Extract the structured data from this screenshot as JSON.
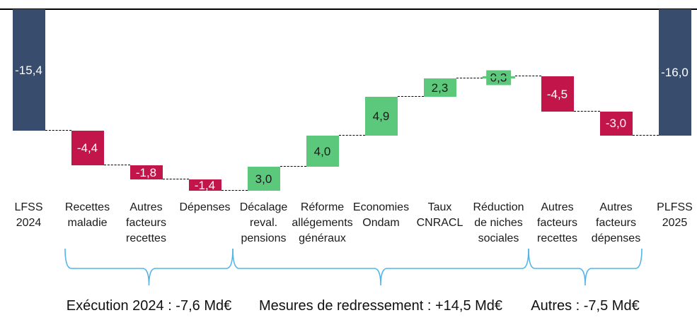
{
  "chart_data": {
    "type": "bar",
    "subtype": "waterfall",
    "title": "",
    "unit": "Md€",
    "axis": {
      "baseline_value": 0,
      "grid": false,
      "legend": false
    },
    "columns": [
      {
        "category": "LFSS\n2024",
        "value": -15.4,
        "display": "-15,4",
        "kind": "total"
      },
      {
        "category": "Recettes\nmaladie",
        "value": -4.4,
        "display": "-4,4",
        "kind": "flow"
      },
      {
        "category": "Autres\nfacteurs\nrecettes",
        "value": -1.8,
        "display": "-1,8",
        "kind": "flow"
      },
      {
        "category": "Dépenses",
        "value": -1.4,
        "display": "-1,4",
        "kind": "flow"
      },
      {
        "category": "Décalage\nreval.\npensions",
        "value": 3.0,
        "display": "3,0",
        "kind": "flow"
      },
      {
        "category": "Réforme\nallégements\ngénéraux",
        "value": 4.0,
        "display": "4,0",
        "kind": "flow"
      },
      {
        "category": "Economies\nOndam",
        "value": 4.9,
        "display": "4,9",
        "kind": "flow"
      },
      {
        "category": "Taux\nCNRACL",
        "value": 2.3,
        "display": "2,3",
        "kind": "flow"
      },
      {
        "category": "Réduction\nde niches\nsociales",
        "value": 0.3,
        "display": "0,3",
        "kind": "flow"
      },
      {
        "category": "Autres\nfacteurs\nrecettes",
        "value": -4.5,
        "display": "-4,5",
        "kind": "flow"
      },
      {
        "category": "Autres\nfacteurs\ndépenses",
        "value": -3.0,
        "display": "-3,0",
        "kind": "flow"
      },
      {
        "category": "PLFSS\n2025",
        "value": -16.0,
        "display": "-16,0",
        "kind": "total"
      }
    ],
    "groups": [
      {
        "label": "Exécution 2024 : -7,6 Md€",
        "from_col": 1,
        "to_col": 3
      },
      {
        "label": "Mesures de redressement : +14,5 Md€",
        "from_col": 4,
        "to_col": 8
      },
      {
        "label": "Autres :  -7,5 Md€",
        "from_col": 9,
        "to_col": 10
      }
    ],
    "colors": {
      "total_bar": "#384C6E",
      "negative_bar": "#C2164A",
      "positive_bar": "#5BC87B",
      "brace": "#52B5EA",
      "connector": "#000000",
      "axis_line": "#000000",
      "text_on_dark": "#FFFFFF",
      "text_on_light": "#1A1A1A"
    }
  }
}
